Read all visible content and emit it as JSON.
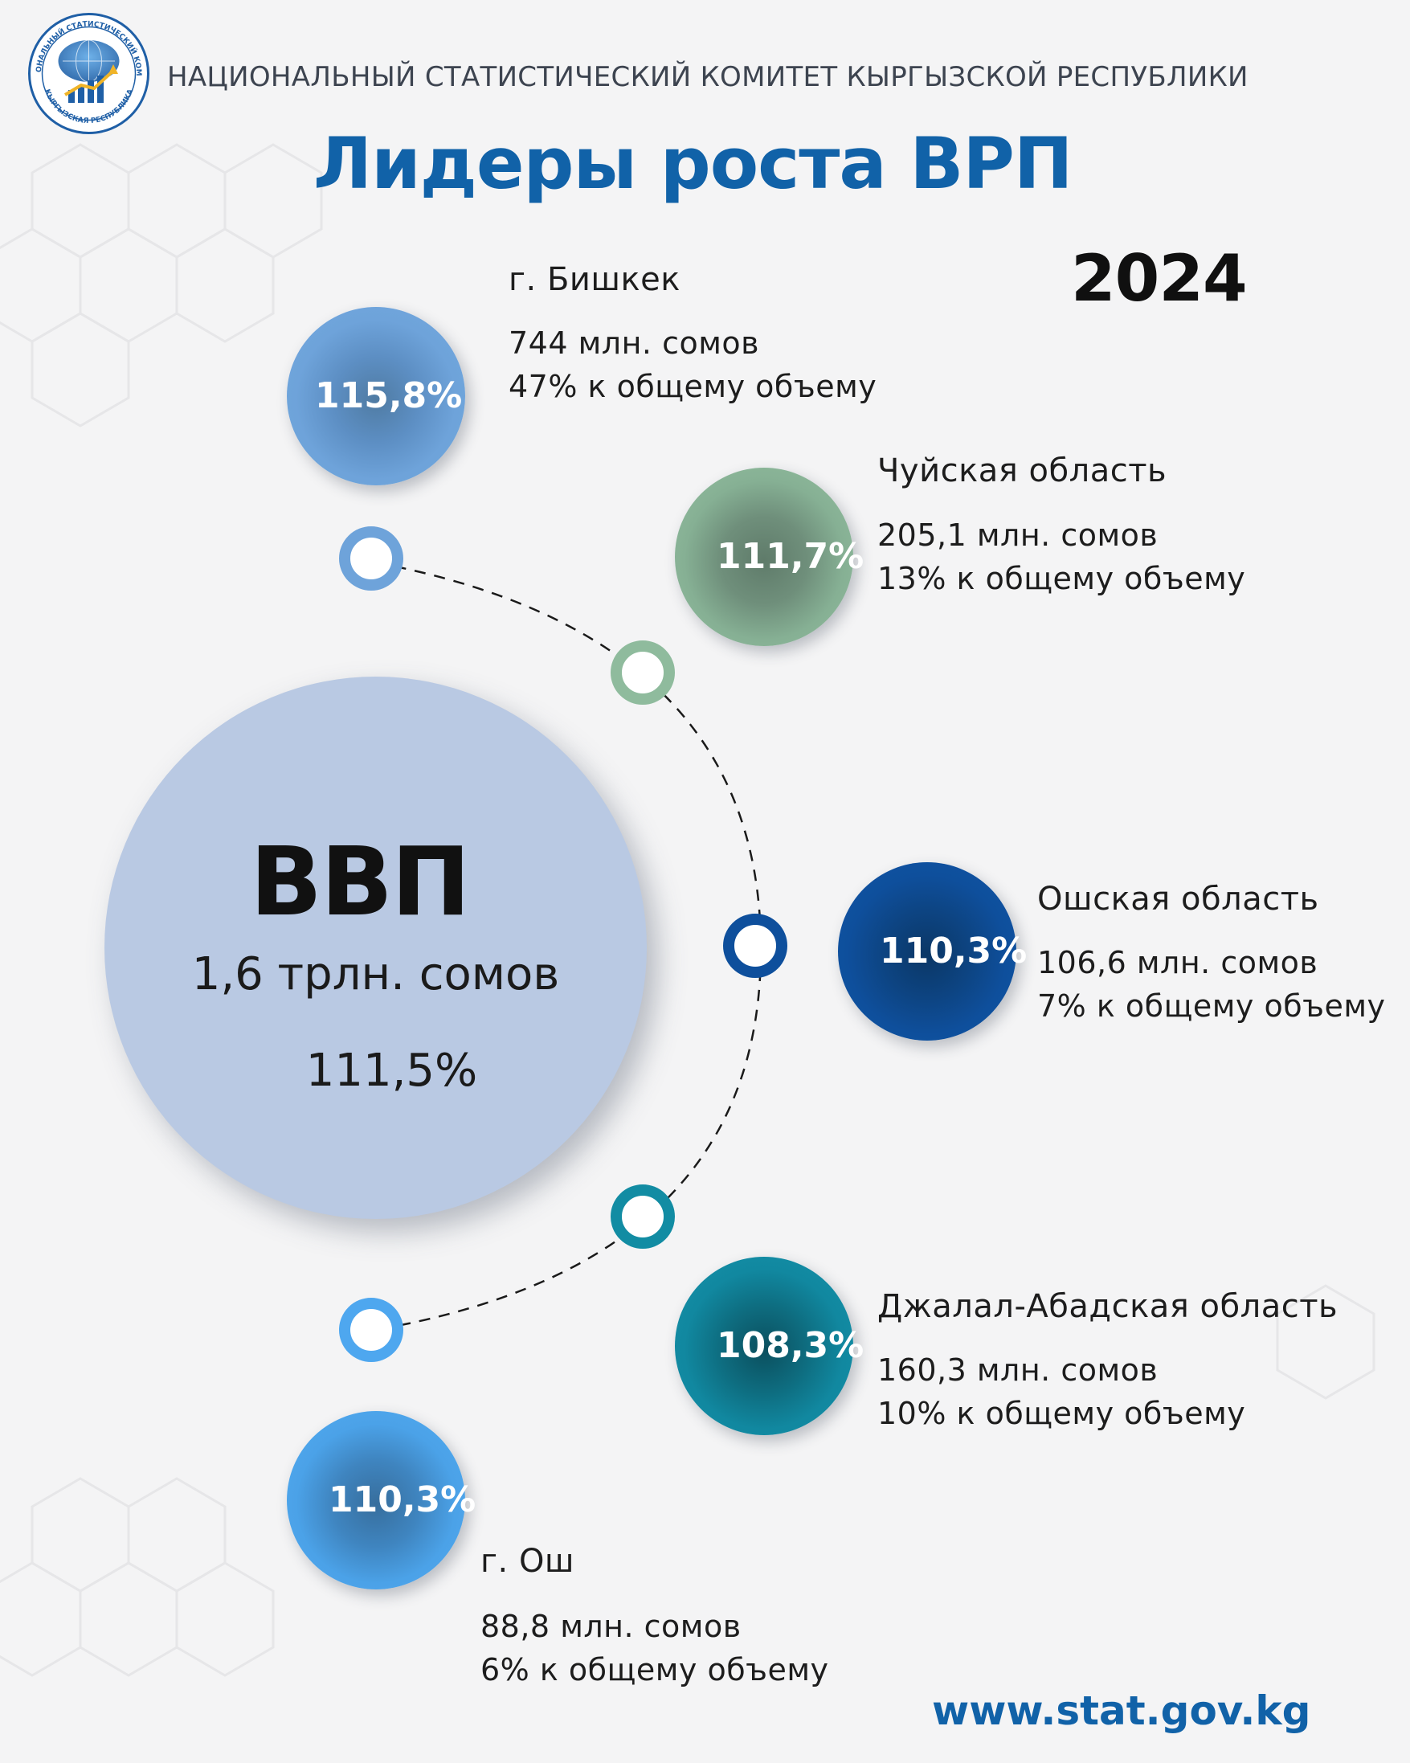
{
  "header": {
    "organization": "НАЦИОНАЛЬНЫЙ СТАТИСТИЧЕСКИЙ КОМИТЕТ КЫРГЫЗСКОЙ РЕСПУБЛИКИ",
    "logo_top_text": "НАЦИОНАЛЬНЫЙ СТАТИСТИЧЕСКИЙ КОМИТЕТ",
    "logo_bottom_text": "КЫРГЫЗСКАЯ РЕСПУБЛИКА",
    "title": "Лидеры роста ВРП",
    "year": "2024"
  },
  "gdp": {
    "label": "ВВП",
    "value": "1,6 трлн. сомов",
    "growth": "111,5%"
  },
  "regions": [
    {
      "name": "г. Бишкек",
      "growth": "115,8%",
      "amount": "744 млн. сомов",
      "share": "47% к общему объему",
      "color": "#6ea3da"
    },
    {
      "name": "Чуйская область",
      "growth": "111,7%",
      "amount": "205,1 млн. сомов",
      "share": "13% к общему объему",
      "color": "#8fbb9d"
    },
    {
      "name": "Ошская область",
      "growth": "110,3%",
      "amount": "106,6 млн. сомов",
      "share": "7% к общему объему",
      "color": "#0e4f9c"
    },
    {
      "name": "Джалал-Абадская область",
      "growth": "108,3%",
      "amount": "160,3 млн. сомов",
      "share": "10% к общему объему",
      "color": "#128ca3"
    },
    {
      "name": "г. Ош",
      "growth": "110,3%",
      "amount": "88,8 млн. сомов",
      "share": "6% к общему объему",
      "color": "#4ea7ef"
    }
  ],
  "footer": {
    "website": "www.stat.gov.kg"
  }
}
